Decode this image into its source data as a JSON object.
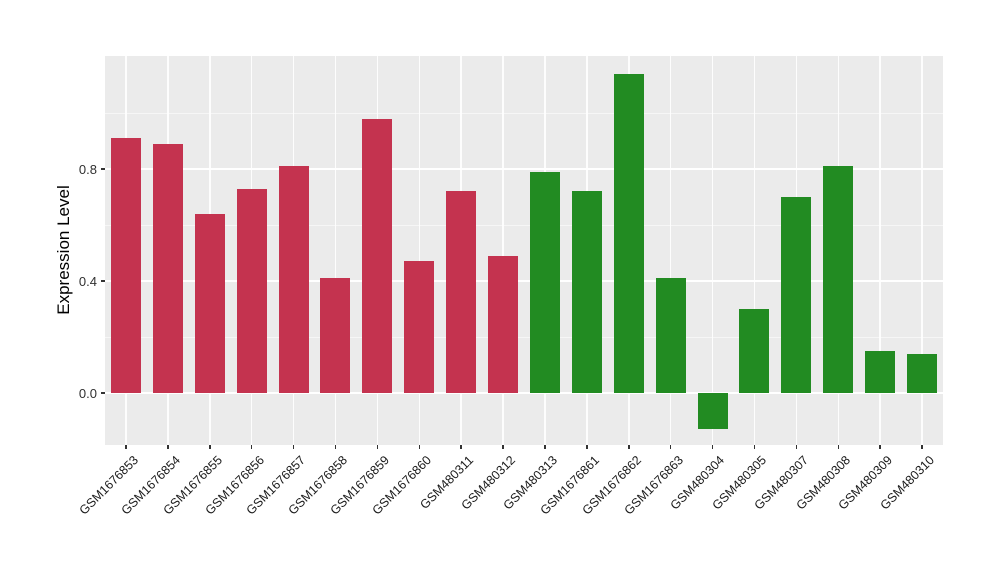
{
  "chart_data": {
    "type": "bar",
    "title": "",
    "xlabel": "",
    "ylabel": "Expression Level",
    "categories": [
      "GSM1676853",
      "GSM1676854",
      "GSM1676855",
      "GSM1676856",
      "GSM1676857",
      "GSM1676858",
      "GSM1676859",
      "GSM1676860",
      "GSM480311",
      "GSM480312",
      "GSM480313",
      "GSM1676861",
      "GSM1676862",
      "GSM1676863",
      "GSM480304",
      "GSM480305",
      "GSM480307",
      "GSM480308",
      "GSM480309",
      "GSM480310"
    ],
    "values": [
      0.91,
      0.89,
      0.64,
      0.73,
      0.81,
      0.41,
      0.98,
      0.47,
      0.72,
      0.49,
      0.79,
      0.72,
      1.14,
      0.41,
      -0.13,
      0.3,
      0.7,
      0.81,
      0.15,
      0.14
    ],
    "bar_groups": [
      "red",
      "red",
      "red",
      "red",
      "red",
      "red",
      "red",
      "red",
      "red",
      "red",
      "green",
      "green",
      "green",
      "green",
      "green",
      "green",
      "green",
      "green",
      "green",
      "green"
    ],
    "group_colors": {
      "red": "#C4334F",
      "green": "#228B22"
    },
    "yticks": [
      {
        "value": 0.0,
        "label": "0.0"
      },
      {
        "value": 0.4,
        "label": "0.4"
      },
      {
        "value": 0.8,
        "label": "0.8"
      }
    ],
    "minor_yticks": [
      0.2,
      0.6,
      1.0
    ],
    "ylim": [
      -0.19,
      1.2
    ],
    "panel_bg": "#EBEBEB",
    "grid_color": "#FFFFFF",
    "legend": "none",
    "grid": "on"
  }
}
